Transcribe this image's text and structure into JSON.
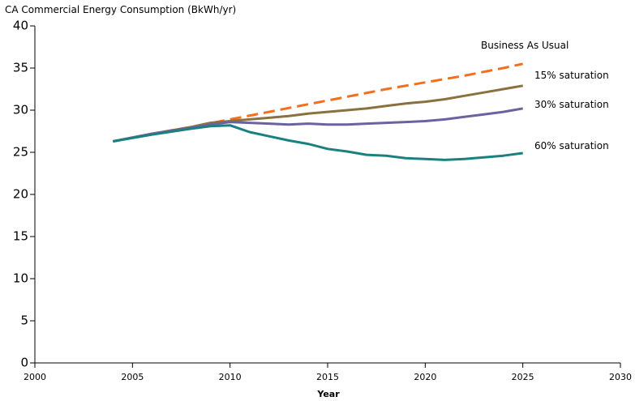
{
  "chart_data": {
    "type": "line",
    "title": "CA Commercial Energy Consumption (BkWh/yr)",
    "xlabel": "Year",
    "ylabel": "",
    "xlim": [
      2000,
      2030
    ],
    "ylim": [
      0,
      40
    ],
    "x_ticks": [
      2000,
      2005,
      2010,
      2015,
      2020,
      2025,
      2030
    ],
    "y_ticks": [
      0,
      5,
      10,
      15,
      20,
      25,
      30,
      35,
      40
    ],
    "grid": false,
    "series": [
      {
        "name": "Business As Usual",
        "color": "#f07020",
        "dash": "dashed",
        "x": [
          2004,
          2006,
          2008,
          2010,
          2012,
          2014,
          2016,
          2018,
          2020,
          2022,
          2024,
          2025
        ],
        "y": [
          26.3,
          27.2,
          28.0,
          28.9,
          29.8,
          30.7,
          31.6,
          32.5,
          33.3,
          34.1,
          35.0,
          35.5
        ]
      },
      {
        "name": "15% saturation",
        "color": "#8b7040",
        "dash": "solid",
        "x": [
          2004,
          2006,
          2008,
          2009,
          2010,
          2011,
          2012,
          2013,
          2014,
          2015,
          2016,
          2017,
          2018,
          2019,
          2020,
          2021,
          2022,
          2023,
          2024,
          2025
        ],
        "y": [
          26.3,
          27.2,
          28.0,
          28.5,
          28.7,
          28.9,
          29.1,
          29.3,
          29.6,
          29.8,
          30.0,
          30.2,
          30.5,
          30.8,
          31.0,
          31.3,
          31.7,
          32.1,
          32.5,
          32.9
        ]
      },
      {
        "name": "30% saturation",
        "color": "#6a63a0",
        "dash": "solid",
        "x": [
          2004,
          2006,
          2008,
          2009,
          2010,
          2011,
          2012,
          2013,
          2014,
          2015,
          2016,
          2017,
          2018,
          2019,
          2020,
          2021,
          2022,
          2023,
          2024,
          2025
        ],
        "y": [
          26.3,
          27.2,
          27.9,
          28.3,
          28.6,
          28.5,
          28.4,
          28.3,
          28.4,
          28.3,
          28.3,
          28.4,
          28.5,
          28.6,
          28.7,
          28.9,
          29.2,
          29.5,
          29.8,
          30.2
        ]
      },
      {
        "name": "60% saturation",
        "color": "#1a8080",
        "dash": "solid",
        "x": [
          2004,
          2006,
          2008,
          2009,
          2010,
          2011,
          2012,
          2013,
          2014,
          2015,
          2016,
          2017,
          2018,
          2019,
          2020,
          2021,
          2022,
          2023,
          2024,
          2025
        ],
        "y": [
          26.3,
          27.1,
          27.8,
          28.1,
          28.2,
          27.4,
          26.9,
          26.4,
          26.0,
          25.4,
          25.1,
          24.7,
          24.6,
          24.3,
          24.2,
          24.1,
          24.2,
          24.4,
          24.6,
          24.9
        ]
      }
    ]
  }
}
